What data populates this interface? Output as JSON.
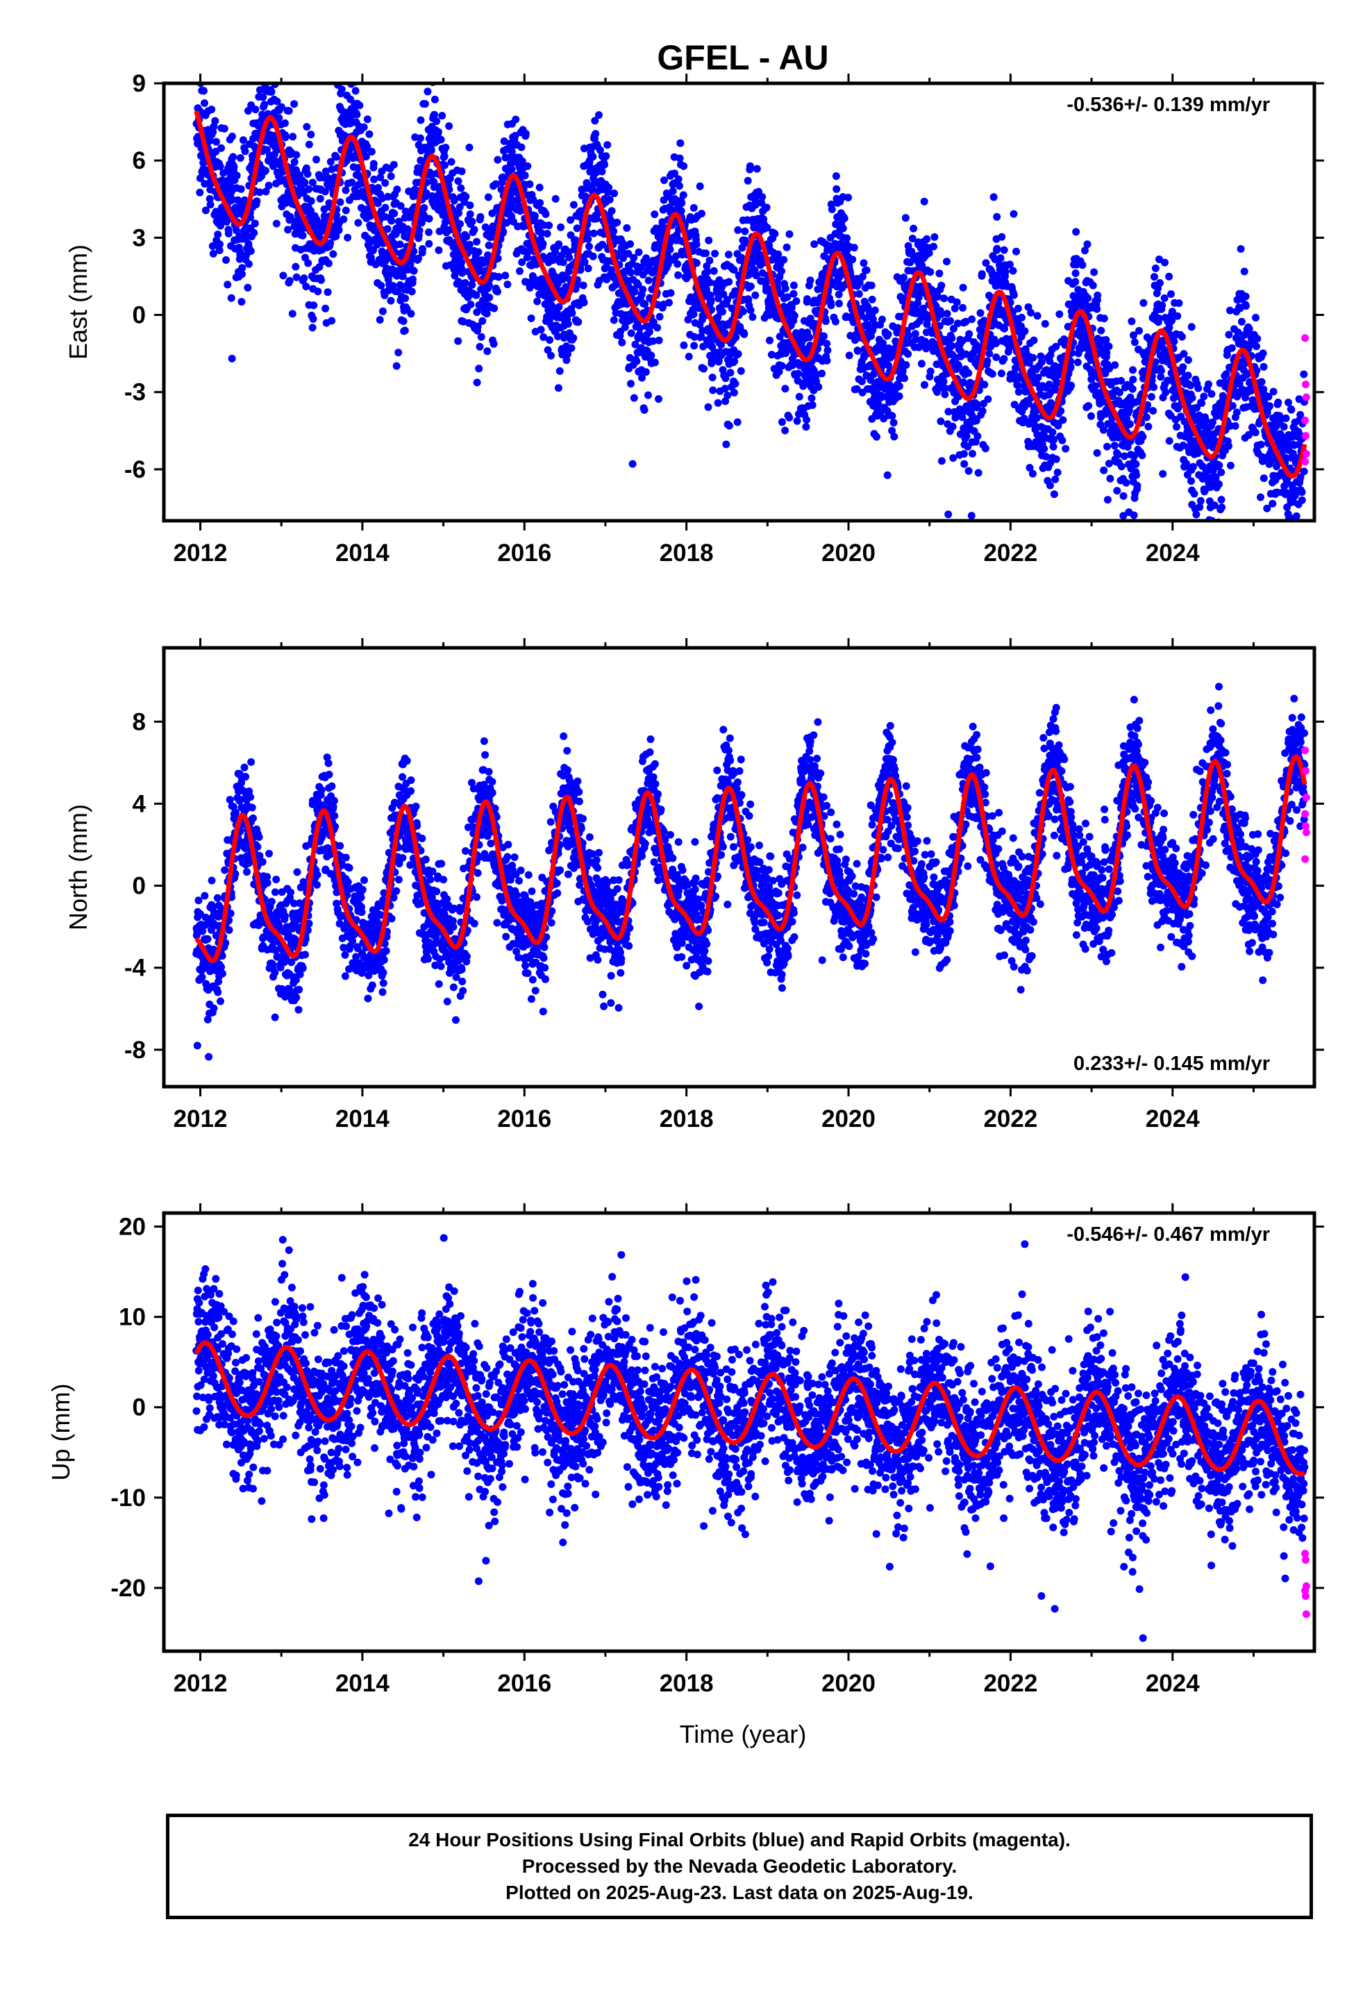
{
  "title": "GFEL - AU",
  "xlabel": "Time (year)",
  "caption": {
    "line1": "24 Hour Positions Using Final Orbits (blue) and Rapid Orbits (magenta).",
    "line2": "Processed by the Nevada Geodetic Laboratory.",
    "line3": "Plotted on 2025-Aug-23. Last data on 2025-Aug-19."
  },
  "colors": {
    "final": "#0000ff",
    "rapid": "#ff00ff",
    "model": "#ff0000",
    "frame": "#000000"
  },
  "chart_data": [
    {
      "type": "scatter",
      "ylabel": "East (mm)",
      "rate_label": "-0.536+/- 0.139 mm/yr",
      "rate_position": "top-right",
      "x_ticks": [
        "2012",
        "2014",
        "2016",
        "2018",
        "2020",
        "2022",
        "2024"
      ],
      "xlim": [
        2011.55,
        2025.75
      ],
      "ylim": [
        -8,
        9
      ],
      "y_ticks": [
        9,
        6,
        3,
        0,
        -3,
        -6
      ],
      "model": {
        "start_year": 2011.95,
        "end_year": 2025.63,
        "start_value": 5.9,
        "end_value": -4.4,
        "annual_amplitude": 2.1,
        "annual_peak_year": 2012.9,
        "semiannual_amplitude": 0.45,
        "semiannual_peak_year": 2012.83
      },
      "scatter_sigma": 1.4,
      "rapid_points": [
        -0.9,
        -2.7,
        -3.2,
        -4.1,
        -4.7,
        -5.4,
        -5.7
      ]
    },
    {
      "type": "scatter",
      "ylabel": "North (mm)",
      "rate_label": "0.233+/- 0.145 mm/yr",
      "rate_position": "bottom-right",
      "x_ticks": [
        "2012",
        "2014",
        "2016",
        "2018",
        "2020",
        "2022",
        "2024"
      ],
      "xlim": [
        2011.55,
        2025.75
      ],
      "ylim": [
        -9.8,
        11.6
      ],
      "y_ticks": [
        8,
        4,
        0,
        -4,
        -8
      ],
      "model": {
        "start_year": 2011.95,
        "end_year": 2025.63,
        "start_value": -0.8,
        "end_value": 2.2,
        "annual_amplitude": 3.2,
        "annual_peak_year": 2012.55,
        "semiannual_amplitude": 1.0,
        "semiannual_peak_year": 2012.5
      },
      "scatter_sigma": 1.3,
      "rapid_points": [
        6.6,
        5.6,
        4.3,
        3.5,
        2.9,
        2.6,
        1.3
      ]
    },
    {
      "type": "scatter",
      "ylabel": "Up (mm)",
      "rate_label": "-0.546+/- 0.467 mm/yr",
      "rate_position": "top-right",
      "x_ticks": [
        "2012",
        "2014",
        "2016",
        "2018",
        "2020",
        "2022",
        "2024"
      ],
      "xlim": [
        2011.55,
        2025.75
      ],
      "ylim": [
        -27,
        21.5
      ],
      "y_ticks": [
        20,
        10,
        0,
        -10,
        -20
      ],
      "model": {
        "start_year": 2011.95,
        "end_year": 2025.63,
        "start_value": 3.0,
        "end_value": -3.8,
        "annual_amplitude": 3.9,
        "annual_peak_year": 2012.07,
        "semiannual_amplitude": 0.3,
        "semiannual_peak_year": 2012.05
      },
      "scatter_sigma": 4.0,
      "rapid_points": [
        -16.2,
        -16.9,
        -19.8,
        -20.3,
        -20.9,
        -22.9
      ]
    }
  ]
}
